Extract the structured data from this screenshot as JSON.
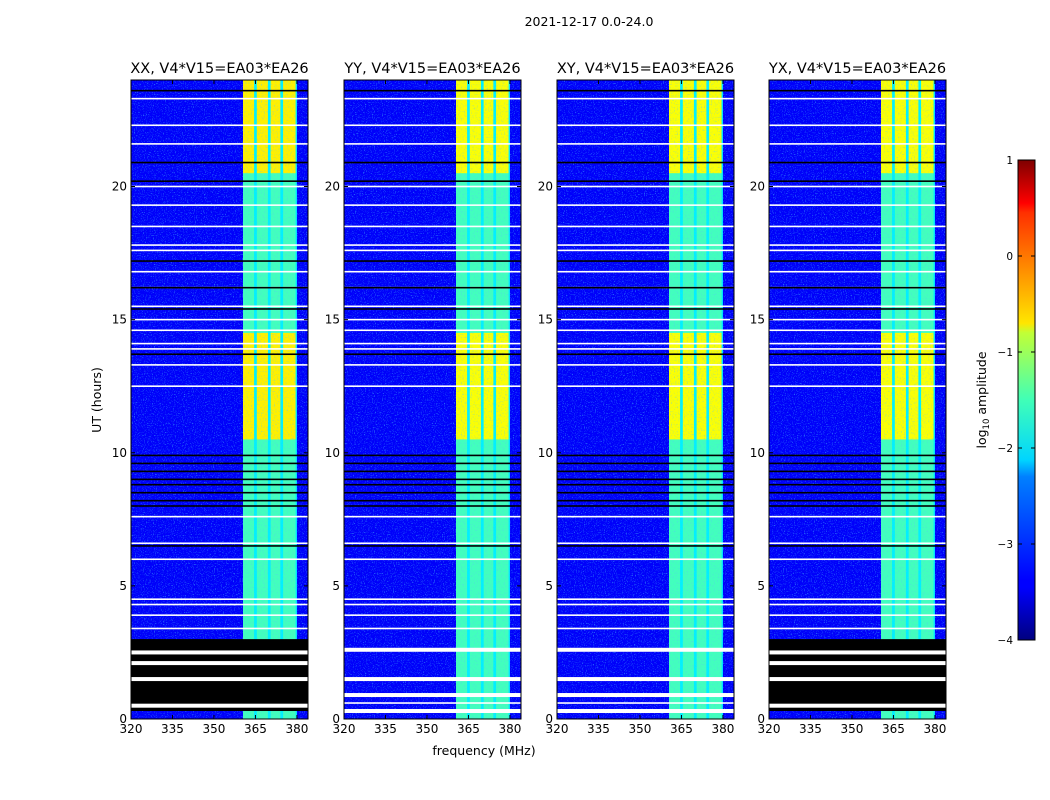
{
  "figure": {
    "suptitle": "2021-12-17 0.0-24.0",
    "xlabel": "frequency (MHz)",
    "ylabel": "UT (hours)"
  },
  "colorbar": {
    "label": "log10 amplitude",
    "label_base": "log",
    "label_sub": "10",
    "label_rest": " amplitude",
    "colormap": "jet",
    "range": [
      -4,
      1
    ],
    "ticks": [
      {
        "value": 1,
        "label": "1"
      },
      {
        "value": 0,
        "label": "0"
      },
      {
        "value": -1,
        "label": "−1"
      },
      {
        "value": -2,
        "label": "−2"
      },
      {
        "value": -3,
        "label": "−3"
      },
      {
        "value": -4,
        "label": "−4"
      }
    ]
  },
  "chart_data": {
    "type": "heatmap",
    "x_range_mhz": [
      320,
      384
    ],
    "y_range_hours": [
      0,
      24
    ],
    "x_ticks": [
      {
        "value": 320,
        "label": "320"
      },
      {
        "value": 335,
        "label": "335"
      },
      {
        "value": 350,
        "label": "350"
      },
      {
        "value": 365,
        "label": "365"
      },
      {
        "value": 380,
        "label": "380"
      }
    ],
    "y_ticks": [
      {
        "value": 0,
        "label": "0"
      },
      {
        "value": 5,
        "label": "5"
      },
      {
        "value": 10,
        "label": "10"
      },
      {
        "value": 15,
        "label": "15"
      },
      {
        "value": 20,
        "label": "20"
      }
    ],
    "background_log_amplitude": -3.4,
    "rfi_band_mhz": [
      360.5,
      380
    ],
    "rfi_subbands_mhz": [
      [
        360.5,
        364.5
      ],
      [
        365.5,
        369.5
      ],
      [
        370.5,
        374
      ],
      [
        375,
        379.5
      ]
    ],
    "strong_rfi_hours": [
      [
        10.5,
        14.5
      ],
      [
        20.5,
        24
      ]
    ],
    "white_flag_lines_hours": [
      0.6,
      1.5,
      3.4,
      3.9,
      4.3,
      4.5,
      6.0,
      6.6,
      7.6,
      12.5,
      13.3,
      13.9,
      14.1,
      14.6,
      15.0,
      15.5,
      16.2,
      16.8,
      17.6,
      17.8,
      18.5,
      19.3,
      20.0,
      21.6,
      22.3,
      23.3
    ],
    "black_flag_lines_hours": [
      6.5,
      8.0,
      8.2,
      8.5,
      8.8,
      9.0,
      9.3,
      9.6,
      9.9,
      13.7,
      15.4,
      16.2,
      17.2,
      20.2,
      20.9,
      23.6
    ],
    "panels": [
      {
        "title": "XX, V4*V15=EA03*EA26",
        "polarization": "XX",
        "flagged_block_hours": [
          0.3,
          3.0
        ],
        "flagged_block_gaps_hours": [
          0.5,
          1.5,
          2.1,
          2.5
        ],
        "rfi_max_log_amplitude": -0.8
      },
      {
        "title": "YY, V4*V15=EA03*EA26",
        "polarization": "YY",
        "flagged_block_hours": null,
        "flagged_block_gaps_hours": [
          0.3,
          0.9,
          1.5,
          2.6
        ],
        "rfi_max_log_amplitude": -0.9
      },
      {
        "title": "XY, V4*V15=EA03*EA26",
        "polarization": "XY",
        "flagged_block_hours": null,
        "flagged_block_gaps_hours": [
          0.3,
          0.9,
          1.5,
          2.6
        ],
        "rfi_max_log_amplitude": -0.9
      },
      {
        "title": "YX, V4*V15=EA03*EA26",
        "polarization": "YX",
        "flagged_block_hours": [
          0.3,
          3.0
        ],
        "flagged_block_gaps_hours": [
          0.5,
          1.5,
          2.1,
          2.5
        ],
        "rfi_max_log_amplitude": -0.9
      }
    ]
  }
}
